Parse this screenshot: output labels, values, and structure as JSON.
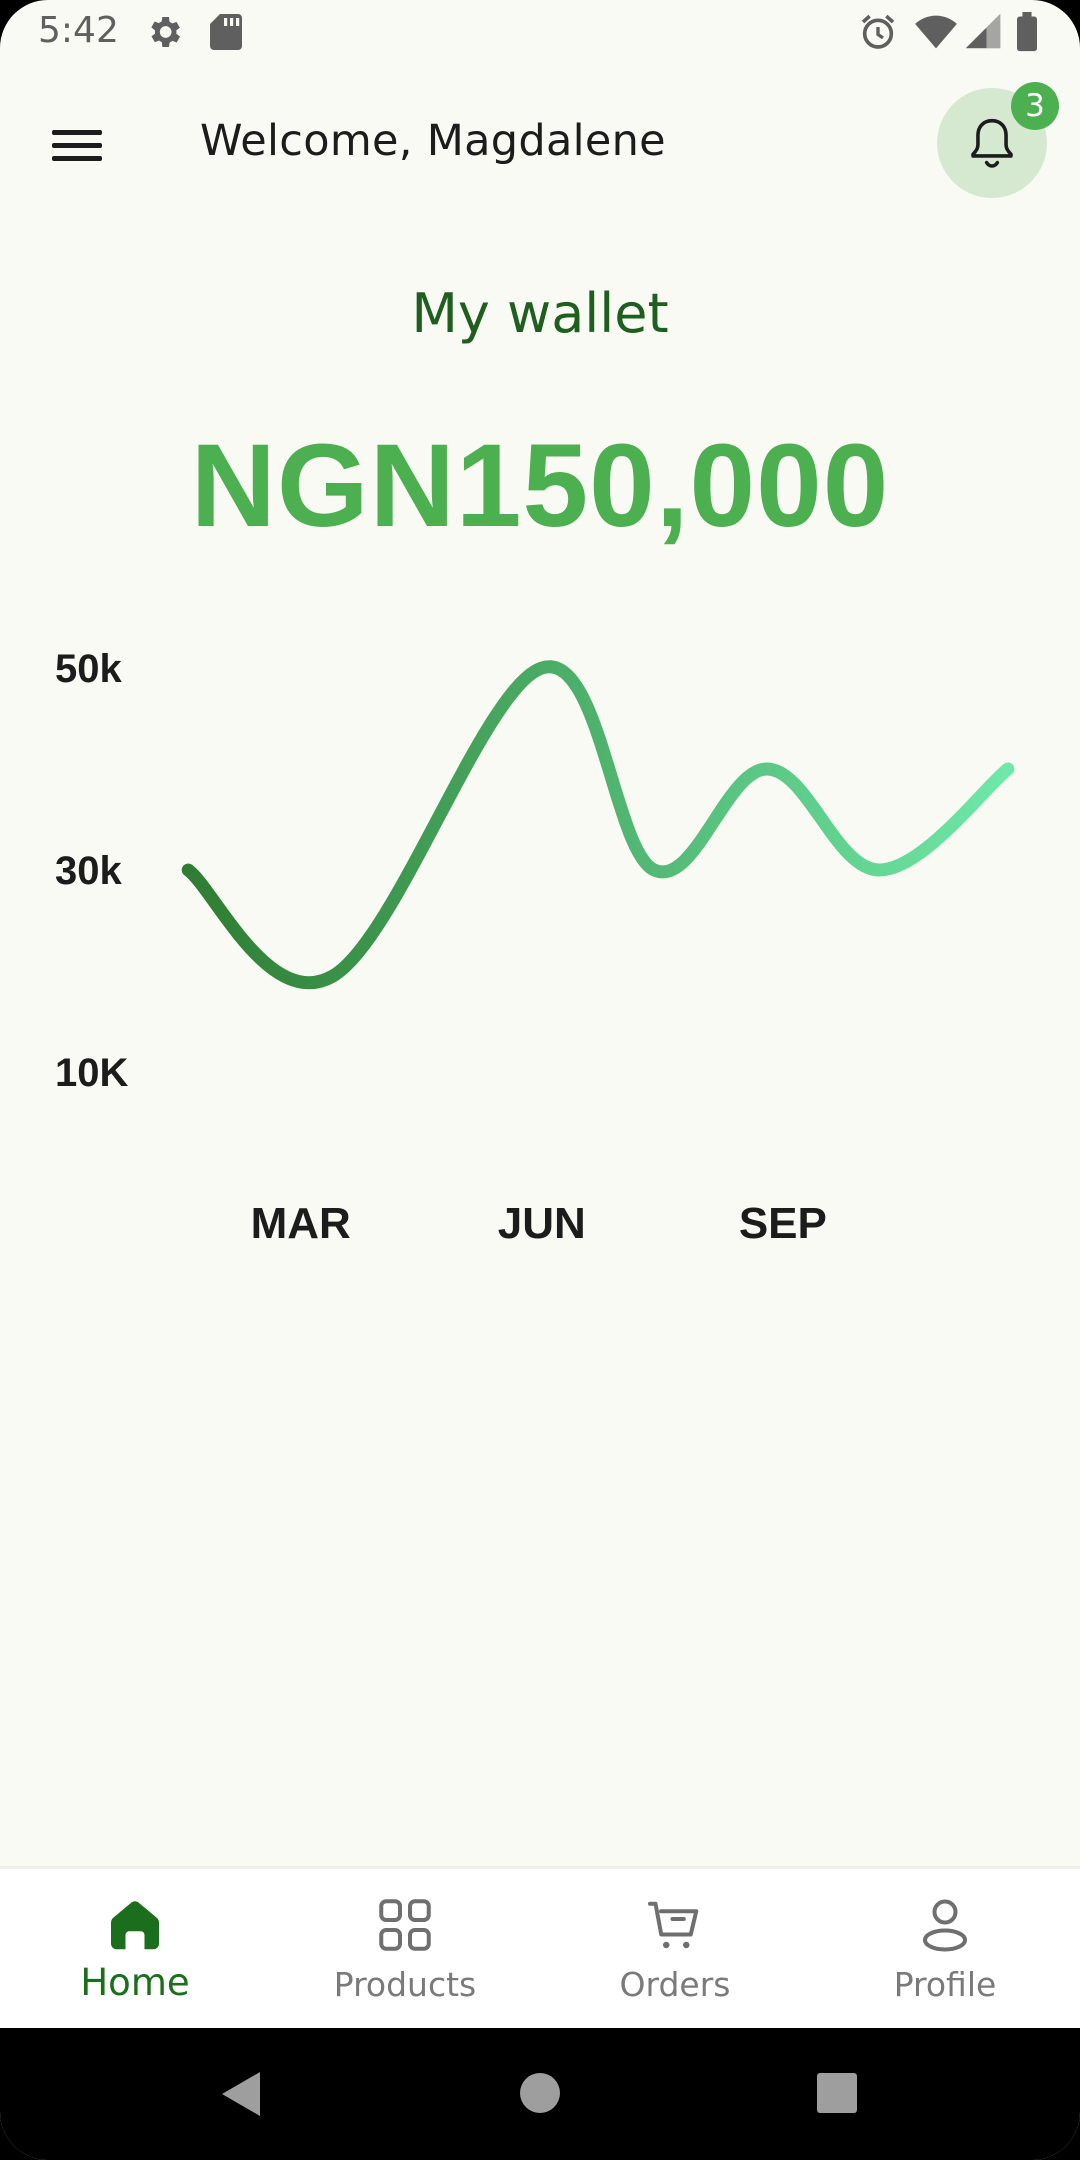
{
  "status_bar": {
    "time": "5:42",
    "icons": [
      "settings-icon",
      "sd-card-icon",
      "alarm-icon",
      "wifi-icon",
      "signal-icon",
      "battery-icon"
    ]
  },
  "header": {
    "welcome": "Welcome, Magdalene",
    "notification_count": "3"
  },
  "wallet": {
    "label": "My wallet",
    "amount": "NGN150,000"
  },
  "chart_data": {
    "type": "line",
    "title": "",
    "xlabel": "",
    "ylabel": "",
    "y_ticks": [
      "50k",
      "30k",
      "10K"
    ],
    "x_ticks": [
      "MAR",
      "JUN",
      "SEP"
    ],
    "ylim": [
      10,
      50
    ],
    "unit": "k",
    "points": [
      {
        "x": 1.6,
        "y": 30
      },
      {
        "x": 3.4,
        "y": 19.5
      },
      {
        "x": 6.0,
        "y": 50
      },
      {
        "x": 7.4,
        "y": 30
      },
      {
        "x": 8.8,
        "y": 40
      },
      {
        "x": 10.2,
        "y": 30
      },
      {
        "x": 11.8,
        "y": 40
      }
    ],
    "gradient": [
      "#2E7D32",
      "#6FE8A8"
    ],
    "grid": false
  },
  "bottom_nav": {
    "items": [
      {
        "label": "Home",
        "icon": "home-icon",
        "active": true
      },
      {
        "label": "Products",
        "icon": "grid-icon",
        "active": false
      },
      {
        "label": "Orders",
        "icon": "cart-icon",
        "active": false
      },
      {
        "label": "Profile",
        "icon": "person-icon",
        "active": false
      }
    ]
  },
  "colors": {
    "primary": "#4CAF50",
    "dark_green": "#1B6E1B",
    "background": "#FAFAF5"
  }
}
